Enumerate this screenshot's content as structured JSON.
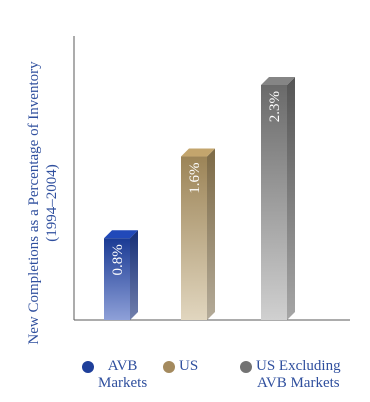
{
  "chart_data": {
    "type": "bar",
    "ylabel": "New Completions as a Percentage of Inventory",
    "ylabel_sub": "(1994–2004)",
    "categories": [
      "AVB Markets",
      "US",
      "US Excluding AVB Markets"
    ],
    "values": [
      0.8,
      1.6,
      2.3
    ],
    "data_labels": [
      "0.8%",
      "1.6%",
      "2.3%"
    ],
    "ylim": [
      0,
      2.75
    ],
    "grid": false,
    "legend_position": "bottom",
    "legend": [
      {
        "label": "AVB\nMarkets",
        "color": "#1f3f9a"
      },
      {
        "label": "US",
        "color": "#a48a5e"
      },
      {
        "label": "US Excluding\nAVB Markets",
        "color": "#737373"
      }
    ],
    "colors": {
      "bar_0_top": "#1a3a94",
      "bar_0_bottom": "#8ea0d8",
      "bar_1_top": "#9c8457",
      "bar_1_bottom": "#e1d6bf",
      "bar_2_top": "#6a6a6a",
      "bar_2_bottom": "#d0d0d0",
      "axis": "#5a5a5a",
      "text": "#2f4f9e"
    }
  }
}
